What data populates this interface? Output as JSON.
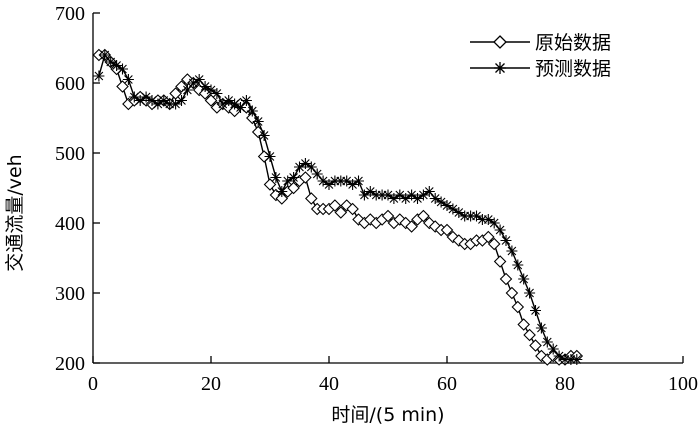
{
  "chart_data": {
    "type": "line",
    "xlabel": "时间/(5 min)",
    "ylabel": "交通流量/veh",
    "xlim": [
      0,
      100
    ],
    "ylim": [
      200,
      700
    ],
    "xticks": [
      "0",
      "20",
      "40",
      "60",
      "80",
      "100"
    ],
    "yticks": [
      "200",
      "300",
      "400",
      "500",
      "600",
      "700"
    ],
    "grid": false,
    "legend_position": "top-right",
    "series": [
      {
        "name": "原始数据",
        "marker": "diamond",
        "x": [
          1,
          2,
          3,
          4,
          5,
          6,
          7,
          8,
          9,
          10,
          11,
          12,
          13,
          14,
          15,
          16,
          17,
          18,
          19,
          20,
          21,
          22,
          23,
          24,
          25,
          26,
          27,
          28,
          29,
          30,
          31,
          32,
          33,
          34,
          35,
          36,
          37,
          38,
          39,
          40,
          41,
          42,
          43,
          44,
          45,
          46,
          47,
          48,
          49,
          50,
          51,
          52,
          53,
          54,
          55,
          56,
          57,
          58,
          59,
          60,
          61,
          62,
          63,
          64,
          65,
          66,
          67,
          68,
          69,
          70,
          71,
          72,
          73,
          74,
          75,
          76,
          77,
          78,
          79,
          80,
          81,
          82
        ],
        "y": [
          640,
          640,
          630,
          620,
          595,
          570,
          575,
          580,
          575,
          570,
          575,
          575,
          570,
          585,
          595,
          605,
          600,
          590,
          585,
          575,
          565,
          570,
          565,
          560,
          570,
          565,
          550,
          530,
          495,
          455,
          440,
          435,
          445,
          450,
          460,
          465,
          435,
          420,
          420,
          420,
          425,
          415,
          425,
          420,
          405,
          400,
          405,
          400,
          405,
          410,
          400,
          405,
          400,
          395,
          405,
          410,
          400,
          395,
          390,
          390,
          380,
          375,
          370,
          370,
          375,
          375,
          380,
          370,
          345,
          320,
          300,
          280,
          255,
          240,
          225,
          210,
          205,
          210,
          205,
          205,
          210,
          210
        ]
      },
      {
        "name": "预测数据",
        "marker": "asterisk",
        "x": [
          1,
          2,
          3,
          4,
          5,
          6,
          7,
          8,
          9,
          10,
          11,
          12,
          13,
          14,
          15,
          16,
          17,
          18,
          19,
          20,
          21,
          22,
          23,
          24,
          25,
          26,
          27,
          28,
          29,
          30,
          31,
          32,
          33,
          34,
          35,
          36,
          37,
          38,
          39,
          40,
          41,
          42,
          43,
          44,
          45,
          46,
          47,
          48,
          49,
          50,
          51,
          52,
          53,
          54,
          55,
          56,
          57,
          58,
          59,
          60,
          61,
          62,
          63,
          64,
          65,
          66,
          67,
          68,
          69,
          70,
          71,
          72,
          73,
          74,
          75,
          76,
          77,
          78,
          79,
          80,
          81,
          82
        ],
        "y": [
          610,
          640,
          630,
          625,
          620,
          605,
          580,
          575,
          580,
          575,
          570,
          575,
          570,
          570,
          575,
          590,
          600,
          605,
          595,
          590,
          585,
          570,
          575,
          570,
          565,
          575,
          560,
          545,
          525,
          495,
          465,
          445,
          460,
          465,
          480,
          485,
          480,
          470,
          460,
          455,
          460,
          460,
          460,
          455,
          460,
          440,
          445,
          440,
          440,
          440,
          435,
          440,
          435,
          440,
          435,
          440,
          445,
          435,
          430,
          425,
          420,
          415,
          410,
          410,
          410,
          405,
          405,
          400,
          390,
          375,
          360,
          340,
          320,
          300,
          275,
          250,
          230,
          220,
          210,
          205,
          205,
          205
        ]
      }
    ]
  }
}
